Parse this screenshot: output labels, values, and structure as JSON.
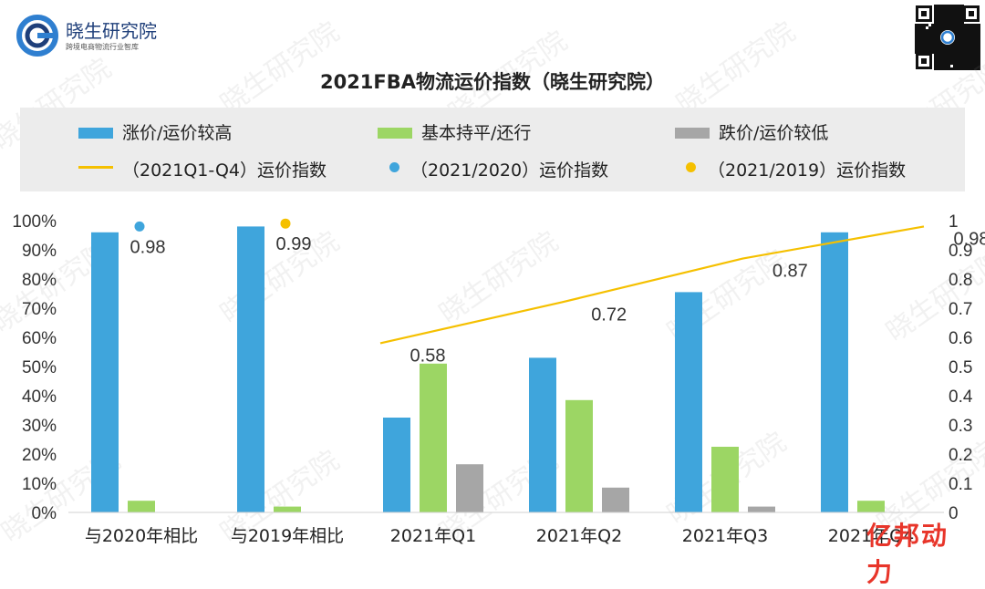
{
  "header": {
    "logo_name": "晓生研究院",
    "logo_slogan": "跨境电商物流行业智库"
  },
  "colors": {
    "blue": "#3fa5dc",
    "green": "#9cd664",
    "gray": "#a6a6a6",
    "yellow": "#f5c000",
    "dot_blue": "#3fa5dc",
    "dot_yellow": "#f5c000"
  },
  "chart_data": {
    "type": "bar",
    "title": "2021FBA物流运价指数（晓生研究院）",
    "categories": [
      "与2020年相比",
      "与2019年相比",
      "2021年Q1",
      "2021年Q2",
      "2021年Q3",
      "2021年Q4"
    ],
    "series": [
      {
        "name": "涨价/运价较高",
        "color": "#3fa5dc",
        "values": [
          96,
          98,
          32.5,
          53,
          75.5,
          96
        ]
      },
      {
        "name": "基本持平/还行",
        "color": "#9cd664",
        "values": [
          4,
          2,
          51,
          38.5,
          22.5,
          4
        ]
      },
      {
        "name": "跌价/运价较低",
        "color": "#a6a6a6",
        "values": [
          null,
          null,
          16.5,
          8.5,
          2,
          null
        ]
      }
    ],
    "line_series": {
      "name": "（2021Q1-Q4）运价指数",
      "color": "#f5c000",
      "categories": [
        "2021年Q1",
        "2021年Q2",
        "2021年Q3",
        "2021年Q4"
      ],
      "values": [
        0.58,
        0.72,
        0.87,
        0.98
      ],
      "labels": [
        "0.58",
        "0.72",
        "0.87",
        "0.98"
      ]
    },
    "point_series": [
      {
        "name": "（2021/2020）运价指数",
        "color": "#3fa5dc",
        "category": "与2020年相比",
        "value": 0.98,
        "label": "0.98"
      },
      {
        "name": "（2021/2019）运价指数",
        "color": "#f5c000",
        "category": "与2019年相比",
        "value": 0.99,
        "label": "0.99"
      }
    ],
    "y_left": {
      "ticks": [
        "0%",
        "10%",
        "20%",
        "30%",
        "40%",
        "50%",
        "60%",
        "70%",
        "80%",
        "90%",
        "100%"
      ],
      "range": [
        0,
        100
      ]
    },
    "y_right": {
      "ticks": [
        "0",
        "0.1",
        "0.2",
        "0.3",
        "0.4",
        "0.5",
        "0.6",
        "0.7",
        "0.8",
        "0.9",
        "1"
      ],
      "range": [
        0,
        1
      ]
    },
    "legend_position": "top",
    "grid": false
  },
  "watermark": "晓生研究院",
  "corner_badge": "亿邦动力"
}
